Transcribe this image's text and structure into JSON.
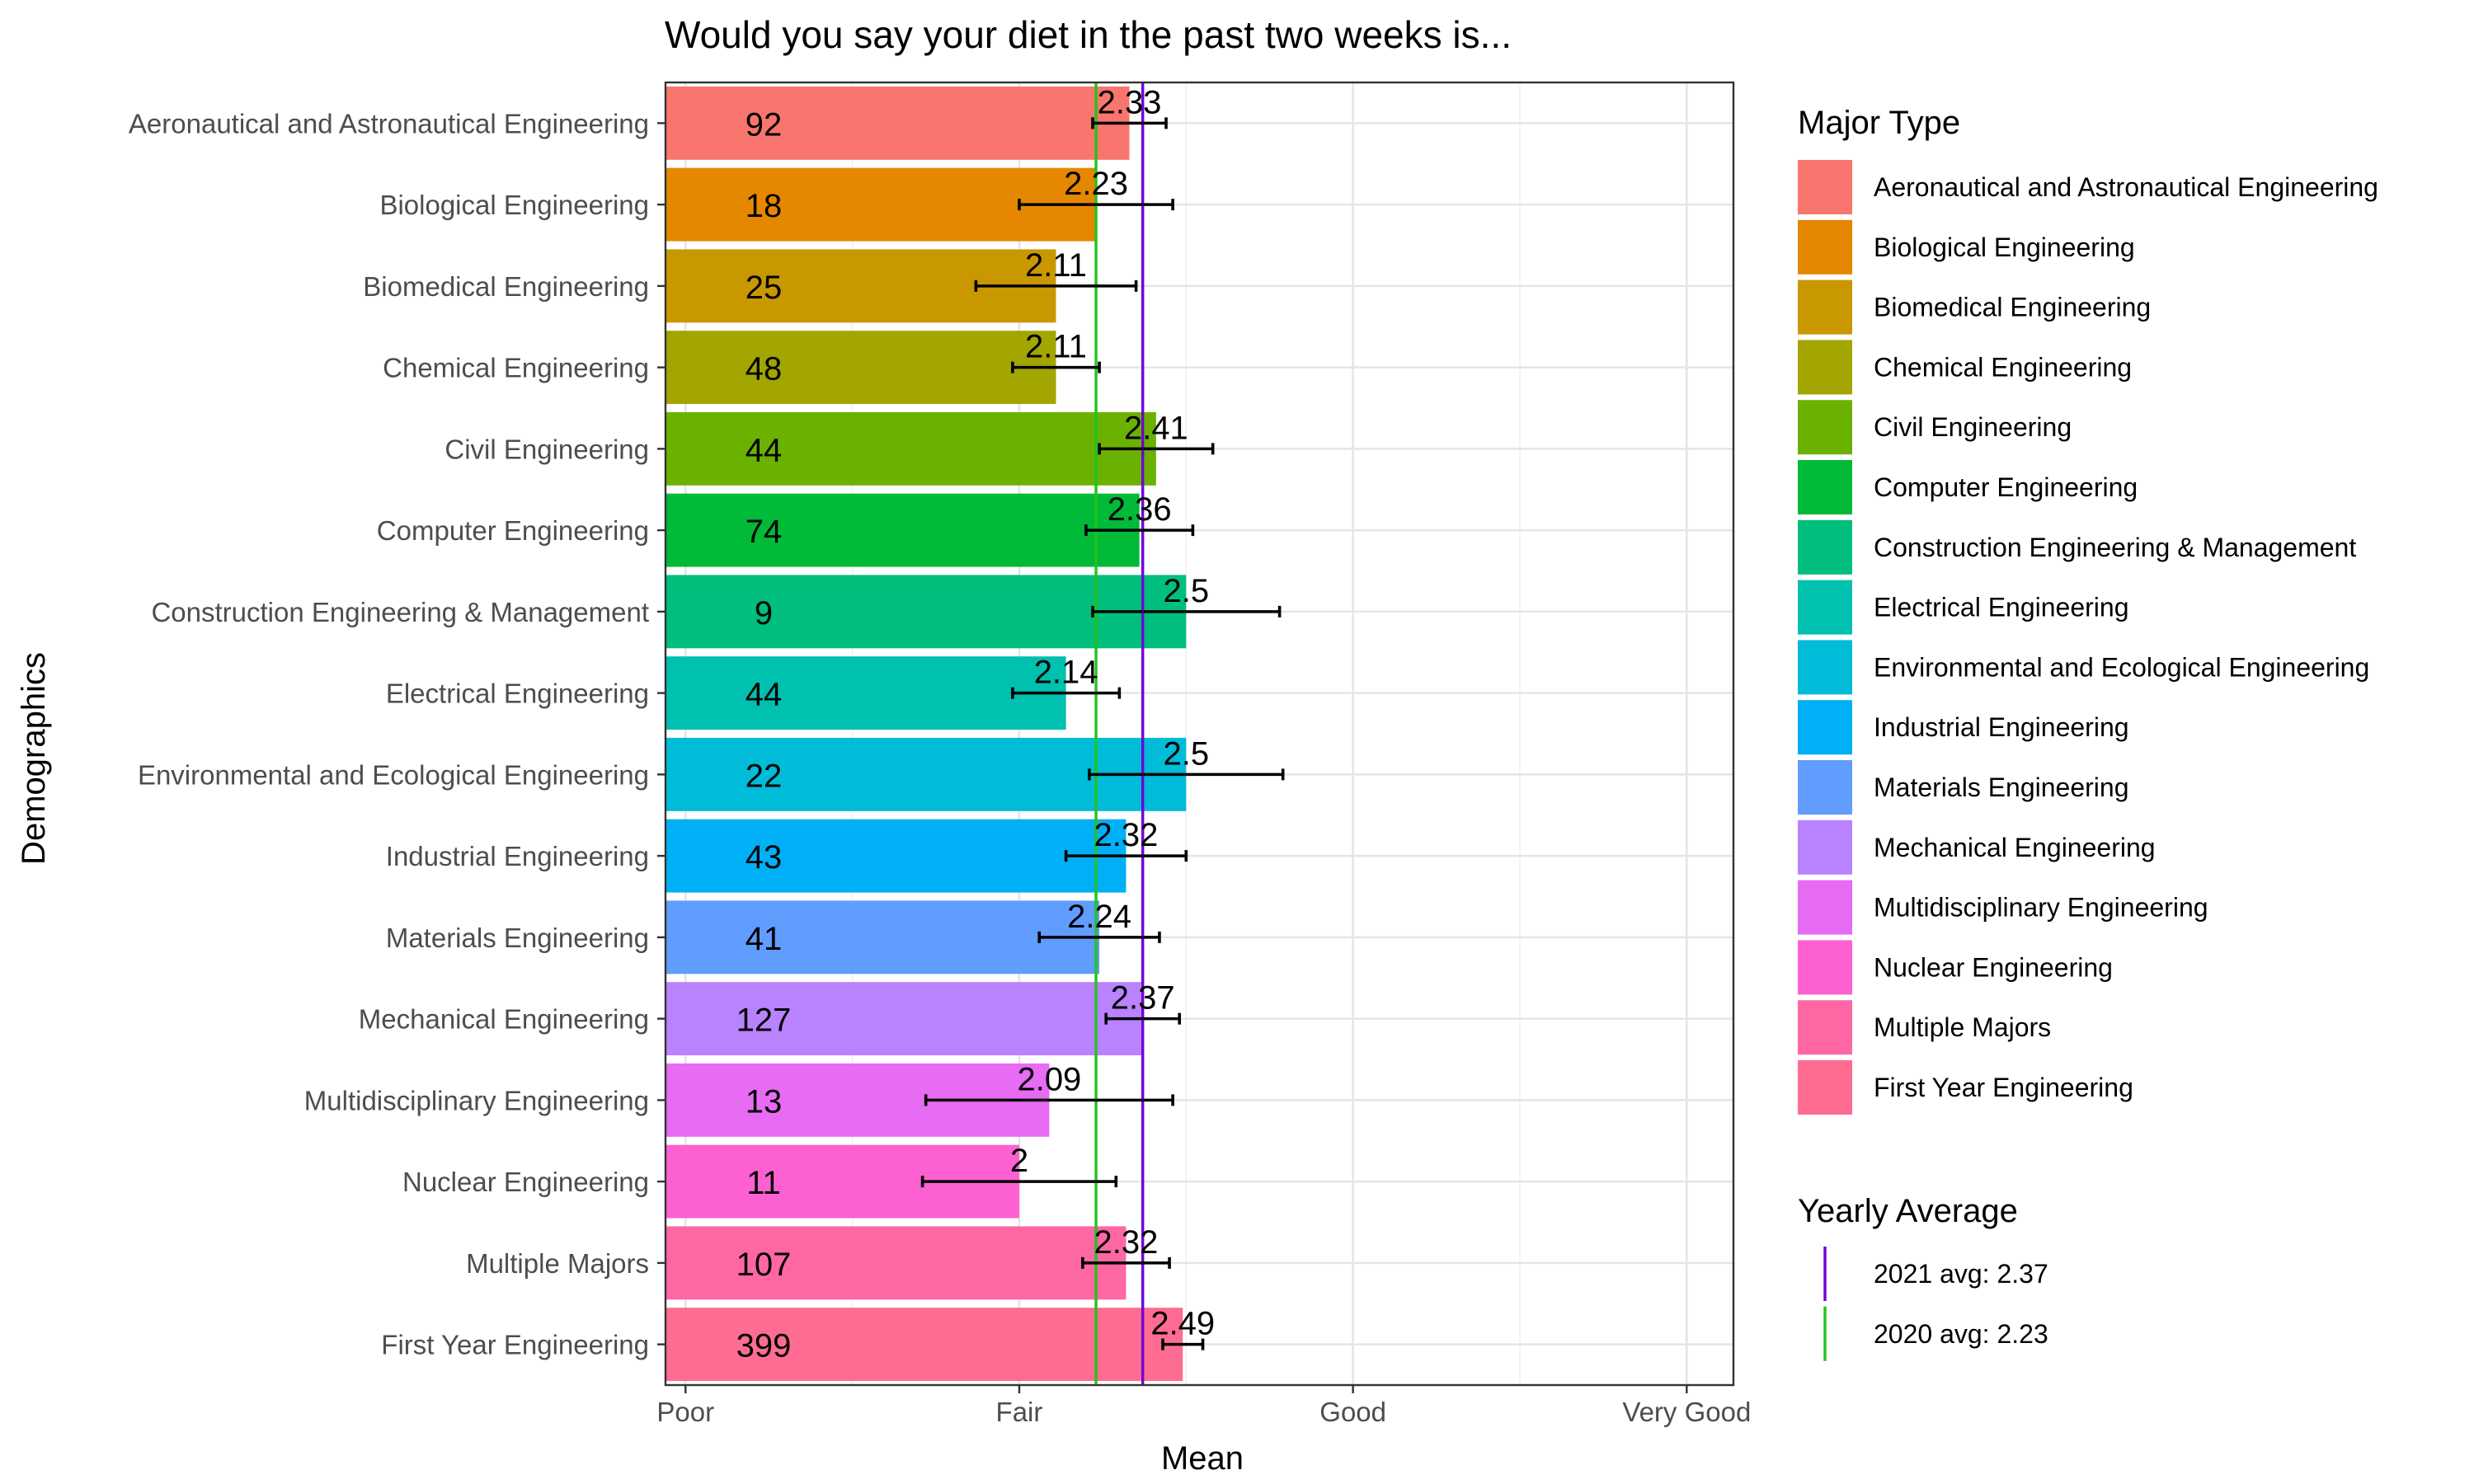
{
  "chart_data": {
    "type": "bar",
    "orientation": "horizontal",
    "title": "Would you say your diet in the past two weeks is...",
    "xlabel": "Mean",
    "ylabel": "Demographics",
    "xlim": [
      0.94,
      4.14
    ],
    "x_ticks": [
      {
        "value": 1,
        "label": "Poor"
      },
      {
        "value": 2,
        "label": "Fair"
      },
      {
        "value": 3,
        "label": "Good"
      },
      {
        "value": 4,
        "label": "Very Good"
      }
    ],
    "grid": true,
    "legend_title": "Major Type",
    "legend_position": "right",
    "categories": [
      "Aeronautical and Astronautical Engineering",
      "Biological Engineering",
      "Biomedical Engineering",
      "Chemical Engineering",
      "Civil Engineering",
      "Computer Engineering",
      "Construction Engineering & Management",
      "Electrical Engineering",
      "Environmental and Ecological Engineering",
      "Industrial Engineering",
      "Materials Engineering",
      "Mechanical Engineering",
      "Multidisciplinary Engineering",
      "Nuclear Engineering",
      "Multiple Majors",
      "First Year Engineering"
    ],
    "values": [
      2.33,
      2.23,
      2.11,
      2.11,
      2.41,
      2.36,
      2.5,
      2.14,
      2.5,
      2.32,
      2.24,
      2.37,
      2.09,
      2,
      2.32,
      2.49
    ],
    "value_labels": [
      "2.33",
      "2.23",
      "2.11",
      "2.11",
      "2.41",
      "2.36",
      "2.5",
      "2.14",
      "2.5",
      "2.32",
      "2.24",
      "2.37",
      "2.09",
      "2",
      "2.32",
      "2.49"
    ],
    "counts": [
      "92",
      "18",
      "25",
      "48",
      "44",
      "74",
      "9",
      "44",
      "22",
      "43",
      "41",
      "127",
      "13",
      "11",
      "107",
      "399"
    ],
    "error_low": [
      2.22,
      2.0,
      1.87,
      1.98,
      2.24,
      2.2,
      2.22,
      1.98,
      2.21,
      2.14,
      2.06,
      2.26,
      1.72,
      1.71,
      2.19,
      2.43
    ],
    "error_high": [
      2.44,
      2.46,
      2.35,
      2.24,
      2.58,
      2.52,
      2.78,
      2.3,
      2.79,
      2.5,
      2.42,
      2.48,
      2.46,
      2.29,
      2.45,
      2.55
    ],
    "colors": [
      "#F8766D",
      "#E58700",
      "#C99800",
      "#A3A500",
      "#6BB100",
      "#00BA38",
      "#00BF7D",
      "#00C0AF",
      "#00BCD8",
      "#00B0F6",
      "#619CFF",
      "#B983FF",
      "#E76BF3",
      "#FD61D1",
      "#FF67A4",
      "#FF6C91"
    ],
    "reference_lines": {
      "title": "Yearly Average",
      "lines": [
        {
          "label": "2021 avg: 2.37",
          "value": 2.37,
          "color": "#7000D6"
        },
        {
          "label": "2020 avg: 2.23",
          "value": 2.23,
          "color": "#22C31F"
        }
      ]
    }
  }
}
